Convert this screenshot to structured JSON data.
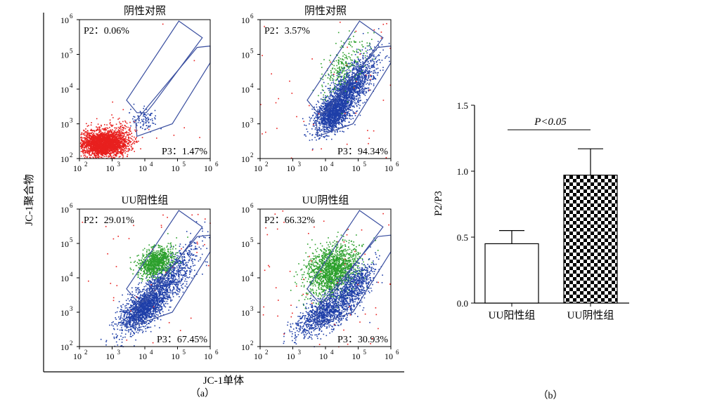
{
  "panel_a": {
    "caption": "（a）",
    "ylabel": "JC-1聚合物",
    "xlabel": "JC-1单体",
    "plots": [
      {
        "title": "阴性对照",
        "p2_label": "P2：0.06%",
        "p3_label": "P3：1.47%",
        "profile": "neg1"
      },
      {
        "title": "阴性对照",
        "p2_label": "P2：3.57%",
        "p3_label": "P3：94.34%",
        "profile": "neg2"
      },
      {
        "title": "UU阳性组",
        "p2_label": "P2：29.01%",
        "p3_label": "P3：67.45%",
        "profile": "pos1"
      },
      {
        "title": "UU阴性组",
        "p2_label": "P2：66.32%",
        "p3_label": "P3：30.93%",
        "profile": "pos2"
      }
    ],
    "x_ticks": [
      "10",
      "10",
      "10",
      "10",
      "10"
    ],
    "x_tick_exp": [
      "2",
      "3",
      "4",
      "5",
      "6"
    ],
    "y_ticks": [
      "10",
      "10",
      "10",
      "10",
      "10"
    ],
    "y_tick_exp": [
      "2",
      "3",
      "4",
      "5",
      "6"
    ],
    "colors": {
      "all_events": "#e8201e",
      "p2_gate": "#2ca02c",
      "p3_gate": "#1f3fa8",
      "gate_line": "#3a4fa0"
    }
  },
  "panel_b": {
    "caption": "（b）",
    "ylabel": "P2/P3",
    "significance": "P<0.05",
    "y_ticks": [
      "0.0",
      "0.5",
      "1.0",
      "1.5"
    ]
  },
  "chart_data": [
    {
      "type": "scatter",
      "title": "",
      "xlabel": "JC-1单体",
      "ylabel": "JC-1聚合物",
      "xscale": "log",
      "yscale": "log",
      "xlim": [
        100,
        1000000
      ],
      "ylim": [
        100,
        1000000
      ],
      "series": [
        {
          "name": "阴性对照",
          "P2_percent": 0.06,
          "P3_percent": 1.47
        },
        {
          "name": "阴性对照",
          "P2_percent": 3.57,
          "P3_percent": 94.34
        },
        {
          "name": "UU阳性组",
          "P2_percent": 29.01,
          "P3_percent": 67.45
        },
        {
          "name": "UU阴性组",
          "P2_percent": 66.32,
          "P3_percent": 30.93
        }
      ]
    },
    {
      "type": "bar",
      "title": "",
      "xlabel": "",
      "ylabel": "P2/P3",
      "categories": [
        "UU阳性组",
        "UU阴性组"
      ],
      "values": [
        0.45,
        0.97
      ],
      "errors": [
        0.1,
        0.2
      ],
      "ylim": [
        0,
        1.5
      ],
      "annotation": "P<0.05",
      "fills": [
        "white",
        "checkerboard"
      ]
    }
  ]
}
